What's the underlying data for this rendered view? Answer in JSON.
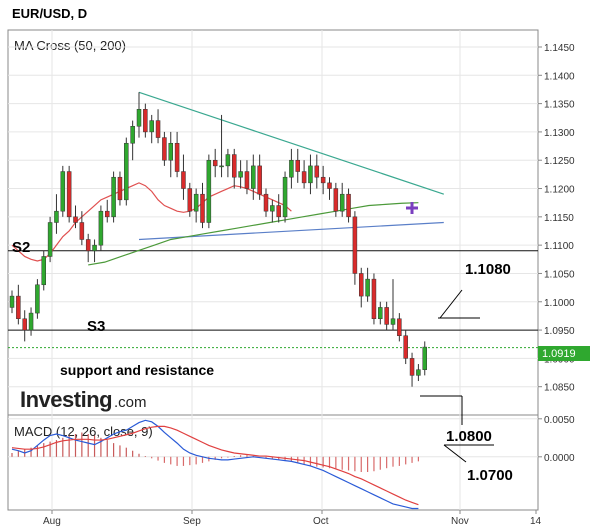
{
  "header": {
    "title": "EUR/USD, D"
  },
  "main_panel": {
    "indicator_label": "MA Cross (50, 200)"
  },
  "macd_panel": {
    "indicator_label": "MACD (12, 26, close, 9)"
  },
  "brand": {
    "name": "Investing",
    "suffix": ".com"
  },
  "colors": {
    "up": "#2fa82f",
    "down": "#d92b2b",
    "ma_fast": "#e05050",
    "ma_slow": "#4c9a3a",
    "trend_top": "#3aa890",
    "trend_flat": "#5a7fc8",
    "macd": "#2a5bd7",
    "signal": "#e04040",
    "price_badge": "#2fa82f"
  },
  "annotations": {
    "s2": "S2",
    "s3": "S3",
    "support_resistance": "support and resistance",
    "level_1": "1.1080",
    "level_2": "1.0800",
    "level_3": "1.0700"
  },
  "current_price": "1.0919",
  "chart_data": [
    {
      "type": "candlestick",
      "title": "EUR/USD, D",
      "ylim": [
        1.08,
        1.148
      ],
      "y_ticks": [
        "1.1450",
        "1.1400",
        "1.1350",
        "1.1300",
        "1.1250",
        "1.1200",
        "1.1150",
        "1.1100",
        "1.1050",
        "1.1000",
        "1.0950",
        "1.0900",
        "1.0850"
      ],
      "x_ticks": [
        "Aug",
        "Sep",
        "Oct",
        "Nov",
        "14"
      ],
      "candles": [
        [
          1.099,
          1.102,
          1.098,
          1.101
        ],
        [
          1.101,
          1.103,
          1.096,
          1.097
        ],
        [
          1.097,
          1.0985,
          1.093,
          1.095
        ],
        [
          1.095,
          1.099,
          1.094,
          1.098
        ],
        [
          1.098,
          1.104,
          1.097,
          1.103
        ],
        [
          1.103,
          1.109,
          1.102,
          1.108
        ],
        [
          1.108,
          1.115,
          1.107,
          1.114
        ],
        [
          1.114,
          1.119,
          1.112,
          1.116
        ],
        [
          1.116,
          1.124,
          1.115,
          1.123
        ],
        [
          1.123,
          1.124,
          1.114,
          1.115
        ],
        [
          1.115,
          1.117,
          1.113,
          1.114
        ],
        [
          1.114,
          1.116,
          1.11,
          1.111
        ],
        [
          1.111,
          1.112,
          1.107,
          1.109
        ],
        [
          1.109,
          1.111,
          1.107,
          1.11
        ],
        [
          1.11,
          1.117,
          1.109,
          1.116
        ],
        [
          1.116,
          1.118,
          1.114,
          1.115
        ],
        [
          1.115,
          1.123,
          1.114,
          1.122
        ],
        [
          1.122,
          1.123,
          1.117,
          1.118
        ],
        [
          1.118,
          1.129,
          1.117,
          1.128
        ],
        [
          1.128,
          1.132,
          1.125,
          1.131
        ],
        [
          1.131,
          1.137,
          1.129,
          1.134
        ],
        [
          1.134,
          1.135,
          1.129,
          1.13
        ],
        [
          1.13,
          1.133,
          1.128,
          1.132
        ],
        [
          1.132,
          1.134,
          1.128,
          1.129
        ],
        [
          1.129,
          1.13,
          1.124,
          1.125
        ],
        [
          1.125,
          1.13,
          1.122,
          1.128
        ],
        [
          1.128,
          1.13,
          1.122,
          1.123
        ],
        [
          1.123,
          1.126,
          1.118,
          1.12
        ],
        [
          1.12,
          1.121,
          1.115,
          1.116
        ],
        [
          1.116,
          1.12,
          1.114,
          1.119
        ],
        [
          1.119,
          1.121,
          1.113,
          1.114
        ],
        [
          1.114,
          1.126,
          1.113,
          1.125
        ],
        [
          1.125,
          1.127,
          1.122,
          1.124
        ],
        [
          1.124,
          1.133,
          1.122,
          1.124
        ],
        [
          1.124,
          1.127,
          1.122,
          1.126
        ],
        [
          1.126,
          1.127,
          1.12,
          1.122
        ],
        [
          1.122,
          1.125,
          1.12,
          1.123
        ],
        [
          1.123,
          1.125,
          1.119,
          1.12
        ],
        [
          1.12,
          1.126,
          1.118,
          1.124
        ],
        [
          1.124,
          1.126,
          1.118,
          1.119
        ],
        [
          1.119,
          1.12,
          1.115,
          1.116
        ],
        [
          1.116,
          1.118,
          1.114,
          1.117
        ],
        [
          1.117,
          1.119,
          1.114,
          1.115
        ],
        [
          1.115,
          1.123,
          1.114,
          1.122
        ],
        [
          1.122,
          1.127,
          1.12,
          1.125
        ],
        [
          1.125,
          1.127,
          1.121,
          1.123
        ],
        [
          1.123,
          1.125,
          1.12,
          1.121
        ],
        [
          1.121,
          1.126,
          1.119,
          1.124
        ],
        [
          1.124,
          1.126,
          1.12,
          1.122
        ],
        [
          1.122,
          1.124,
          1.119,
          1.121
        ],
        [
          1.121,
          1.122,
          1.118,
          1.12
        ],
        [
          1.12,
          1.121,
          1.115,
          1.116
        ],
        [
          1.116,
          1.121,
          1.115,
          1.119
        ],
        [
          1.119,
          1.12,
          1.114,
          1.115
        ],
        [
          1.115,
          1.116,
          1.103,
          1.105
        ],
        [
          1.105,
          1.106,
          1.099,
          1.101
        ],
        [
          1.101,
          1.106,
          1.1,
          1.104
        ],
        [
          1.104,
          1.105,
          1.096,
          1.097
        ],
        [
          1.097,
          1.1,
          1.096,
          1.099
        ],
        [
          1.099,
          1.1,
          1.095,
          1.096
        ],
        [
          1.096,
          1.104,
          1.095,
          1.097
        ],
        [
          1.097,
          1.098,
          1.093,
          1.094
        ],
        [
          1.094,
          1.095,
          1.089,
          1.09
        ],
        [
          1.09,
          1.091,
          1.085,
          1.087
        ],
        [
          1.087,
          1.089,
          1.086,
          1.088
        ],
        [
          1.088,
          1.093,
          1.087,
          1.092
        ]
      ],
      "ma_fast": [
        1.11,
        1.109,
        1.108,
        1.1075,
        1.1072,
        1.1075,
        1.1085,
        1.11,
        1.1115,
        1.1125,
        1.114,
        1.115,
        1.116,
        1.117,
        1.118,
        1.1185,
        1.119,
        1.1195,
        1.12,
        1.1205,
        1.121,
        1.1205,
        1.1195,
        1.118,
        1.117,
        1.1165,
        1.116,
        1.1158,
        1.116,
        1.1165,
        1.1175,
        1.1185,
        1.119,
        1.1195,
        1.12,
        1.1205,
        1.1203,
        1.12,
        1.1195,
        1.119,
        1.1185,
        1.118,
        1.1175,
        1.117,
        1.116
      ],
      "ma_slow": [
        1.1065,
        1.107,
        1.108,
        1.109,
        1.11,
        1.111,
        1.1115,
        1.112,
        1.1125,
        1.113,
        1.1135,
        1.114,
        1.1145,
        1.115,
        1.1155,
        1.116,
        1.1165,
        1.117,
        1.1172,
        1.1174,
        1.1175
      ],
      "trendlines": [
        {
          "from": [
            20,
            1.137
          ],
          "to": [
            68,
            1.119
          ]
        },
        {
          "from": [
            20,
            1.111
          ],
          "to": [
            68,
            1.114
          ]
        }
      ],
      "horizontal_levels": [
        1.109,
        1.095,
        1.0919
      ]
    },
    {
      "type": "macd",
      "title": "MACD (12, 26, close, 9)",
      "ylim": [
        -0.007,
        0.0055
      ],
      "y_ticks": [
        "0.0050",
        "0.0000"
      ],
      "histogram": [
        0.0005,
        0.0008,
        0.001,
        0.0012,
        0.0015,
        0.0018,
        0.002,
        0.0022,
        0.0025,
        0.0028,
        0.003,
        0.0032,
        0.003,
        0.0028,
        0.0025,
        0.0022,
        0.0018,
        0.0015,
        0.0012,
        0.0008,
        0.0004,
        0.0001,
        -0.0002,
        -0.0005,
        -0.0008,
        -0.001,
        -0.0012,
        -0.0012,
        -0.0011,
        -0.001,
        -0.0008,
        -0.0006,
        -0.0004,
        -0.0002,
        -0.0001,
        0.0001,
        0.0002,
        0.0002,
        0.0001,
        0.0,
        -0.0002,
        -0.0003,
        -0.0004,
        -0.0005,
        -0.0006,
        -0.0008,
        -0.001,
        -0.0012,
        -0.0013,
        -0.0014,
        -0.0015,
        -0.0016,
        -0.0017,
        -0.0018,
        -0.0019,
        -0.002,
        -0.002,
        -0.0019,
        -0.0017,
        -0.0015,
        -0.0013,
        -0.0012,
        -0.001,
        -0.0008,
        -0.0006
      ],
      "macd": [
        0.001,
        0.0008,
        0.0005,
        0.0008,
        0.0015,
        0.0022,
        0.0028,
        0.003,
        0.0028,
        0.0025,
        0.0022,
        0.002,
        0.0018,
        0.0016,
        0.002,
        0.0025,
        0.003,
        0.0033,
        0.0035,
        0.004,
        0.0045,
        0.0048,
        0.0046,
        0.004,
        0.0032,
        0.0025,
        0.0018,
        0.001,
        0.0005,
        0.0002,
        0.0,
        -0.0002,
        -0.0003,
        -0.0004,
        -0.0004,
        -0.0003,
        -0.0002,
        -0.0001,
        0.0,
        -0.0001,
        -0.0002,
        -0.0003,
        -0.0004,
        -0.0005,
        -0.0006,
        -0.0008,
        -0.001,
        -0.0012,
        -0.0015,
        -0.0018,
        -0.0022,
        -0.0026,
        -0.003,
        -0.0034,
        -0.0038,
        -0.0042,
        -0.0046,
        -0.005,
        -0.0054,
        -0.0058,
        -0.0062,
        -0.0064,
        -0.0066,
        -0.0068,
        -0.0068
      ],
      "signal": [
        0.0012,
        0.0011,
        0.001,
        0.001,
        0.0011,
        0.0013,
        0.0016,
        0.0019,
        0.0021,
        0.0022,
        0.0023,
        0.0023,
        0.0023,
        0.0022,
        0.0022,
        0.0023,
        0.0025,
        0.0027,
        0.0029,
        0.0031,
        0.0034,
        0.0037,
        0.0039,
        0.004,
        0.004,
        0.0038,
        0.0035,
        0.0031,
        0.0027,
        0.0023,
        0.0019,
        0.0015,
        0.0012,
        0.0009,
        0.0007,
        0.0005,
        0.0004,
        0.0003,
        0.0002,
        0.0001,
        0.0001,
        0.0,
        -0.0001,
        -0.0002,
        -0.0003,
        -0.0004,
        -0.0005,
        -0.0007,
        -0.0009,
        -0.0011,
        -0.0013,
        -0.0016,
        -0.0019,
        -0.0022,
        -0.0026,
        -0.0029,
        -0.0033,
        -0.0037,
        -0.0041,
        -0.0045,
        -0.0049,
        -0.0053,
        -0.0057,
        -0.006,
        -0.0063
      ]
    }
  ]
}
